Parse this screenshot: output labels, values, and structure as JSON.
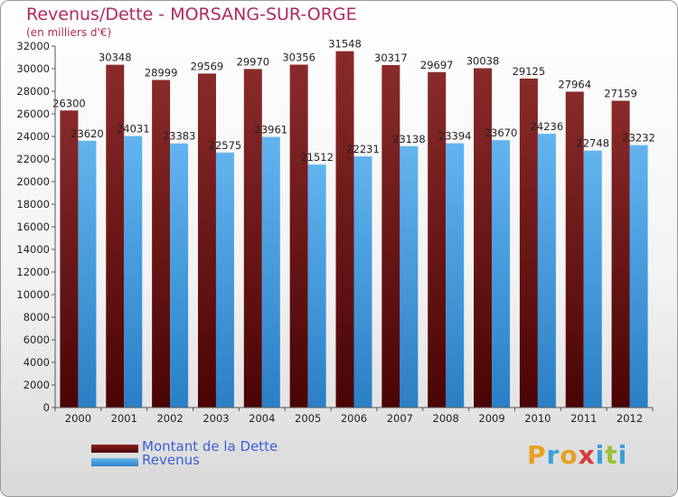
{
  "title": "Revenus/Dette - MORSANG-SUR-ORGE",
  "subtitle": "(en milliers d'€)",
  "logo": {
    "text": [
      "P",
      "r",
      "o",
      "x",
      "i",
      "t",
      "i"
    ],
    "colors": [
      "#e8a020",
      "#3aa0d8",
      "#e8a020",
      "#d83a3a",
      "#3aa0d8",
      "#9ac23a",
      "#3aa0d8"
    ]
  },
  "colors": {
    "dette": "#6b0a0a",
    "revenus": "#3f9be0",
    "title": "#b02a5e",
    "legend_text": "#3a5fd9"
  },
  "chart_data": {
    "type": "bar",
    "categories": [
      "2000",
      "2001",
      "2002",
      "2003",
      "2004",
      "2005",
      "2006",
      "2007",
      "2008",
      "2009",
      "2010",
      "2011",
      "2012"
    ],
    "series": [
      {
        "name": "Montant de la Dette",
        "values": [
          26300,
          30348,
          28999,
          29569,
          29970,
          30356,
          31548,
          30317,
          29697,
          30038,
          29125,
          27964,
          27159
        ]
      },
      {
        "name": "Revenus",
        "values": [
          23620,
          24031,
          23383,
          22575,
          23961,
          21512,
          22231,
          23138,
          23394,
          23670,
          24236,
          22748,
          23232
        ]
      }
    ],
    "ylim": [
      0,
      32000
    ],
    "ytick_step": 2000,
    "grid": false,
    "legend": "bottom-left"
  }
}
